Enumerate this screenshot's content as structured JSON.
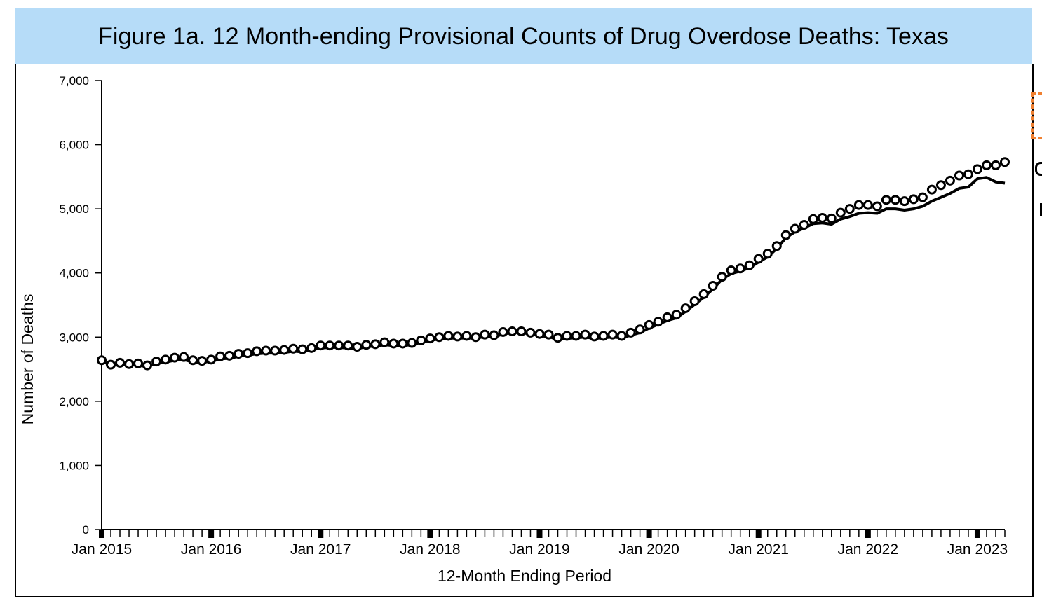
{
  "title": "Figure 1a. 12 Month-ending Provisional Counts of Drug Overdose Deaths: Texas",
  "chart_data": {
    "type": "line",
    "title": "Figure 1a. 12 Month-ending Provisional Counts of Drug Overdose Deaths: Texas",
    "xlabel": "12-Month Ending Period",
    "ylabel": "Number of Deaths",
    "ylim": [
      0,
      7000
    ],
    "y_ticks": [
      0,
      1000,
      2000,
      3000,
      4000,
      5000,
      6000,
      7000
    ],
    "y_tick_labels": [
      "0",
      "1,000",
      "2,000",
      "3,000",
      "4,000",
      "5,000",
      "6,000",
      "7,000"
    ],
    "x_start": "Jan 2015",
    "x_tick_labels": [
      "Jan 2015",
      "Jan 2016",
      "Jan 2017",
      "Jan 2018",
      "Jan 2019",
      "Jan 2020",
      "Jan 2021",
      "Jan 2022",
      "Jan 2023"
    ],
    "x_tick_months": [
      0,
      12,
      24,
      36,
      48,
      60,
      72,
      84,
      96
    ],
    "grid": false,
    "series": [
      {
        "marker": "circle",
        "values": [
          2640,
          2570,
          2600,
          2580,
          2590,
          2560,
          2620,
          2650,
          2680,
          2690,
          2640,
          2630,
          2650,
          2700,
          2710,
          2740,
          2750,
          2780,
          2790,
          2790,
          2800,
          2820,
          2810,
          2830,
          2870,
          2870,
          2870,
          2870,
          2850,
          2880,
          2890,
          2920,
          2900,
          2900,
          2910,
          2950,
          2980,
          3000,
          3020,
          3010,
          3020,
          3000,
          3040,
          3030,
          3080,
          3090,
          3090,
          3070,
          3050,
          3040,
          2990,
          3020,
          3020,
          3040,
          3010,
          3020,
          3040,
          3020,
          3070,
          3120,
          3190,
          3240,
          3310,
          3350,
          3450,
          3560,
          3670,
          3800,
          3940,
          4040,
          4070,
          4120,
          4220,
          4300,
          4420,
          4590,
          4690,
          4750,
          4840,
          4860,
          4850,
          4940,
          5000,
          5060,
          5060,
          5040,
          5140,
          5140,
          5120,
          5150,
          5180,
          5300,
          5370,
          5440,
          5520,
          5540,
          5620,
          5680,
          5680,
          5730
        ]
      },
      {
        "marker": "none",
        "values": [
          2630,
          2560,
          2570,
          2570,
          2560,
          2540,
          2590,
          2610,
          2640,
          2650,
          2610,
          2610,
          2620,
          2660,
          2670,
          2700,
          2720,
          2740,
          2750,
          2750,
          2760,
          2780,
          2770,
          2800,
          2830,
          2840,
          2840,
          2830,
          2820,
          2850,
          2860,
          2880,
          2870,
          2870,
          2880,
          2920,
          2950,
          2970,
          2990,
          2980,
          2990,
          2980,
          3010,
          3000,
          3050,
          3070,
          3070,
          3050,
          3020,
          3010,
          2960,
          2980,
          2990,
          3000,
          2980,
          2990,
          3000,
          2990,
          3030,
          3070,
          3140,
          3200,
          3260,
          3300,
          3400,
          3510,
          3620,
          3750,
          3900,
          3990,
          4030,
          4080,
          4170,
          4250,
          4380,
          4550,
          4640,
          4700,
          4770,
          4780,
          4760,
          4840,
          4880,
          4930,
          4940,
          4930,
          5000,
          5000,
          4980,
          5000,
          5040,
          5120,
          5180,
          5240,
          5320,
          5340,
          5470,
          5490,
          5420,
          5400
        ]
      }
    ]
  }
}
